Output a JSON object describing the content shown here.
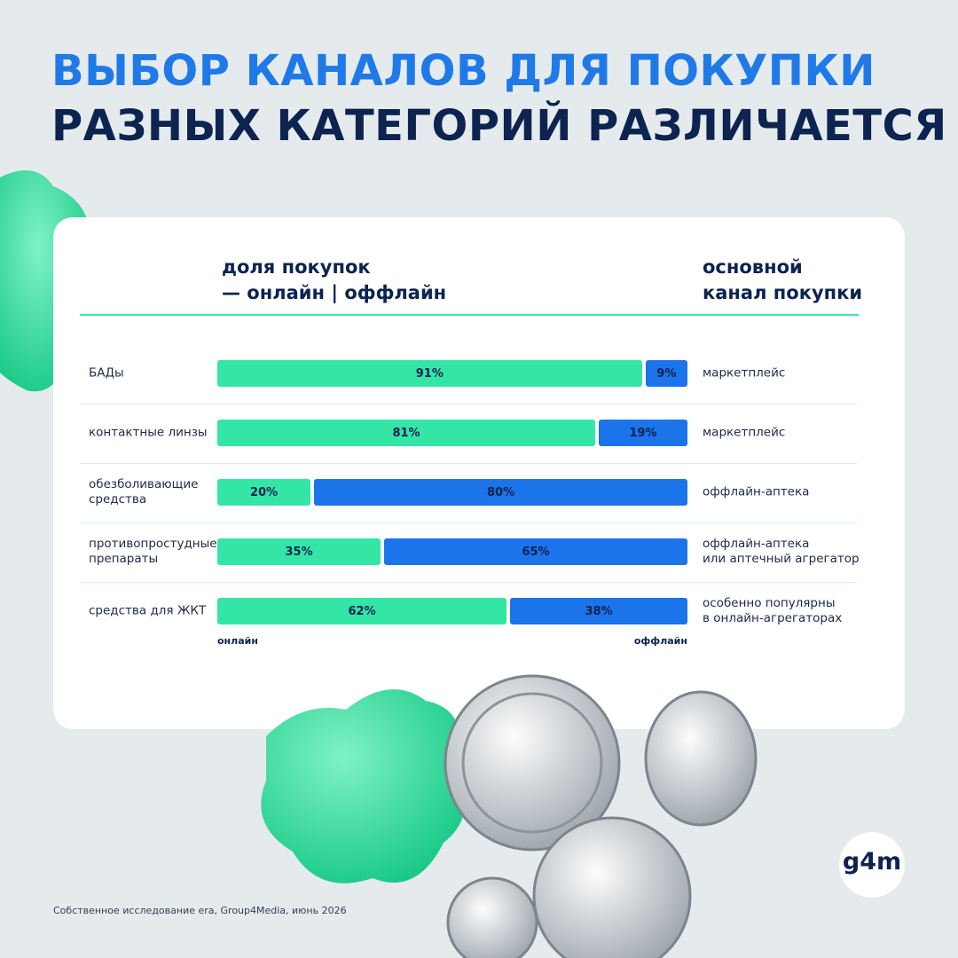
{
  "chart_data": {
    "type": "bar",
    "orientation": "horizontal",
    "stacked": true,
    "title": "ВЫБОР КАНАЛОВ ДЛЯ ПОКУПКИ",
    "subtitle": "РАЗНЫХ КАТЕГОРИЙ РАЗЛИЧАЕТСЯ",
    "share_header": [
      "доля покупок",
      "— онлайн | оффлайн"
    ],
    "channel_header": [
      "основной",
      "канал покупки"
    ],
    "categories": [
      "БАДы",
      "контактные линзы",
      "обезболивающие\nсредства",
      "противопростудные\nпрепараты",
      "средства для ЖКТ"
    ],
    "xlim": [
      0,
      100
    ],
    "series": [
      {
        "name": "онлайн",
        "color": "#33e6a6",
        "values": [
          91,
          81,
          20,
          35,
          62
        ],
        "value_labels": [
          "91%",
          "81%",
          "20%",
          "35%",
          "62%"
        ]
      },
      {
        "name": "оффлайн",
        "color": "#1b74ea",
        "values": [
          9,
          19,
          80,
          65,
          38
        ],
        "value_labels": [
          "9%",
          "19%",
          "80%",
          "65%",
          "38%"
        ]
      }
    ],
    "main_channel": [
      "маркетплейс",
      "маркетплейс",
      "оффлайн-аптека",
      "оффлайн-аптека\nили аптечный агрегатор",
      "особенно популярны\nв онлайн-агрегаторах"
    ]
  },
  "footer": {
    "source": "Собственное исследование era, Group4Media, июнь 2026",
    "logo": "g4m"
  }
}
